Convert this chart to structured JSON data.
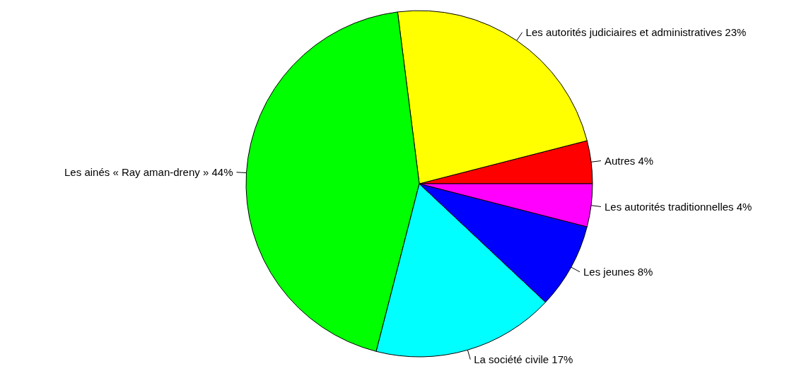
{
  "chart_data": {
    "type": "pie",
    "categories": [
      "Autres 4%",
      "Les autorités judiciaires et administratives 23%",
      "Les ainés « Ray aman-dreny » 44%",
      "La société civile 17%",
      "Les jeunes 8%",
      "Les autorités traditionnelles 4%"
    ],
    "values": [
      4,
      23,
      44,
      17,
      8,
      4
    ],
    "colors": [
      "#ff0000",
      "#ffff00",
      "#00ff00",
      "#00ffff",
      "#0000ff",
      "#ff00ff"
    ],
    "legend": false
  }
}
